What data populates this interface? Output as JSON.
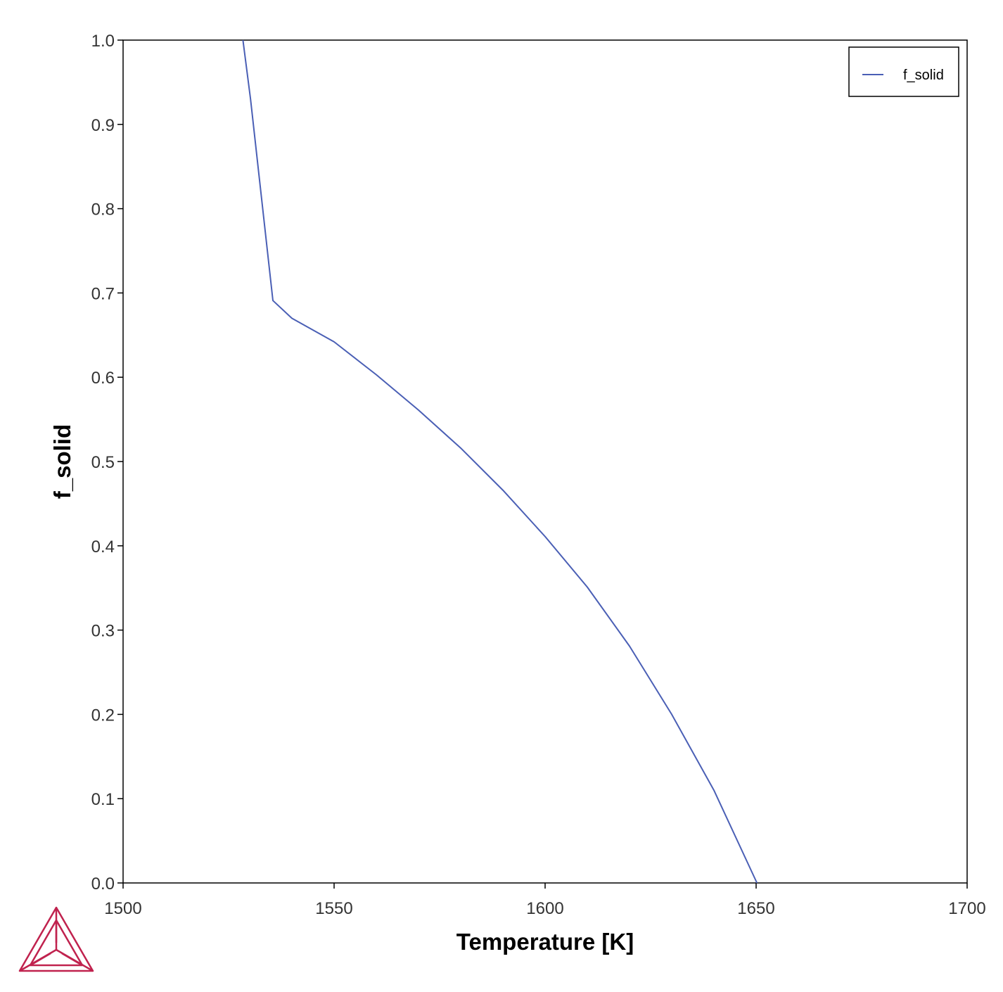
{
  "chart_data": {
    "type": "line",
    "xlabel": "Temperature [K]",
    "ylabel": "f_solid",
    "xlim": [
      1500,
      1700
    ],
    "ylim": [
      0.0,
      1.0
    ],
    "x_ticks": [
      "1500",
      "1550",
      "1600",
      "1650",
      "1700"
    ],
    "y_ticks": [
      "0.0",
      "0.1",
      "0.2",
      "0.3",
      "0.4",
      "0.5",
      "0.6",
      "0.7",
      "0.8",
      "0.9",
      "1.0"
    ],
    "grid": false,
    "legend_position": "top-right",
    "series": [
      {
        "name": "f_solid",
        "color": "#4a5fb5",
        "x": [
          1528.4,
          1530.2,
          1535.5,
          1540,
          1550,
          1560,
          1570,
          1580,
          1590,
          1600,
          1610,
          1620,
          1630,
          1640,
          1650.2
        ],
        "y": [
          1.0,
          0.93,
          0.691,
          0.67,
          0.642,
          0.603,
          0.561,
          0.516,
          0.466,
          0.411,
          0.351,
          0.281,
          0.2,
          0.11,
          0.0
        ]
      }
    ]
  },
  "logo": {
    "name": "thermo-calc-logo",
    "color": "#c0224e"
  }
}
